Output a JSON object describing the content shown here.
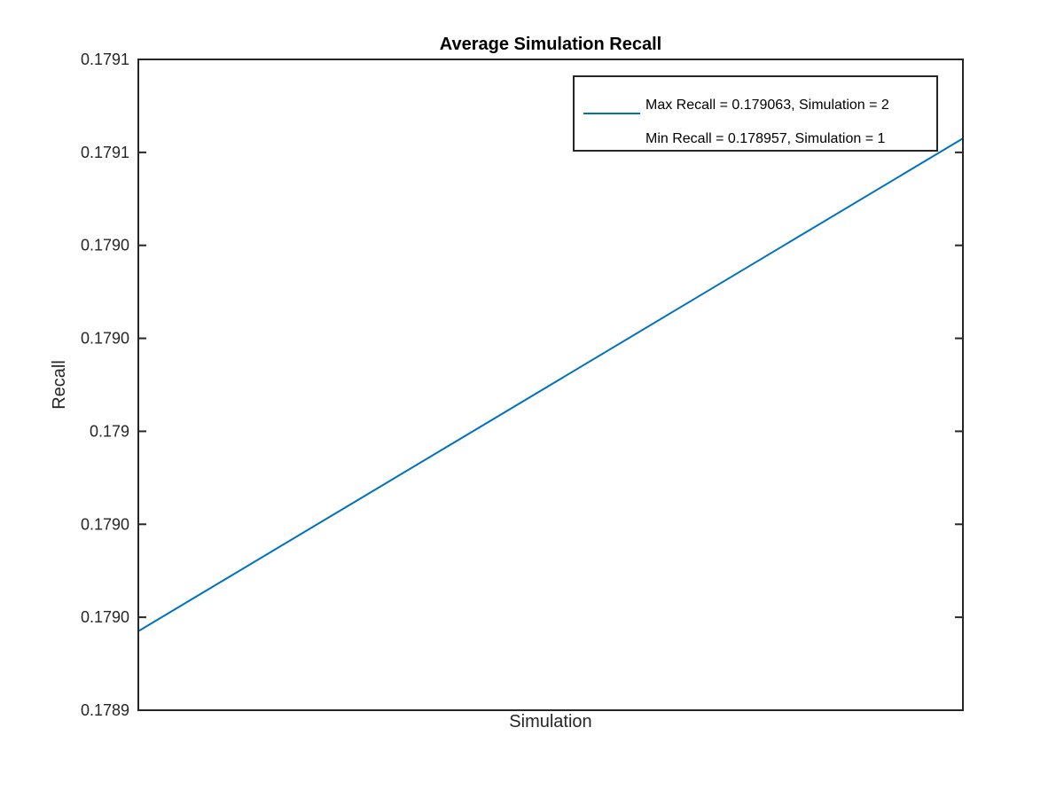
{
  "chart_data": {
    "type": "line",
    "title": "Average Simulation Recall",
    "xlabel": "Simulation",
    "ylabel": "Recall",
    "x": [
      1,
      2
    ],
    "xlim": [
      1,
      2
    ],
    "ylim": [
      0.17894,
      0.17908
    ],
    "ytick_values": [
      0.17894,
      0.17896,
      0.17898,
      0.179,
      0.17902,
      0.17904,
      0.17906,
      0.17908
    ],
    "ytick_labels": [
      "0.1789",
      "0.1790",
      "0.1790",
      "0.179",
      "0.1790",
      "0.1790",
      "0.1791",
      "0.1791"
    ],
    "series": [
      {
        "name": "Max Recall = 0.179063, Simulation = 2",
        "values": [
          0.178957,
          0.179063
        ],
        "color": "#0072BD"
      }
    ],
    "legend": {
      "location": "top-right",
      "entries": [
        {
          "label": "Max Recall = 0.179063, Simulation = 2",
          "line": true
        },
        {
          "label": "Min Recall = 0.178957, Simulation = 1",
          "line": false
        }
      ]
    },
    "grid": false,
    "box": true
  }
}
